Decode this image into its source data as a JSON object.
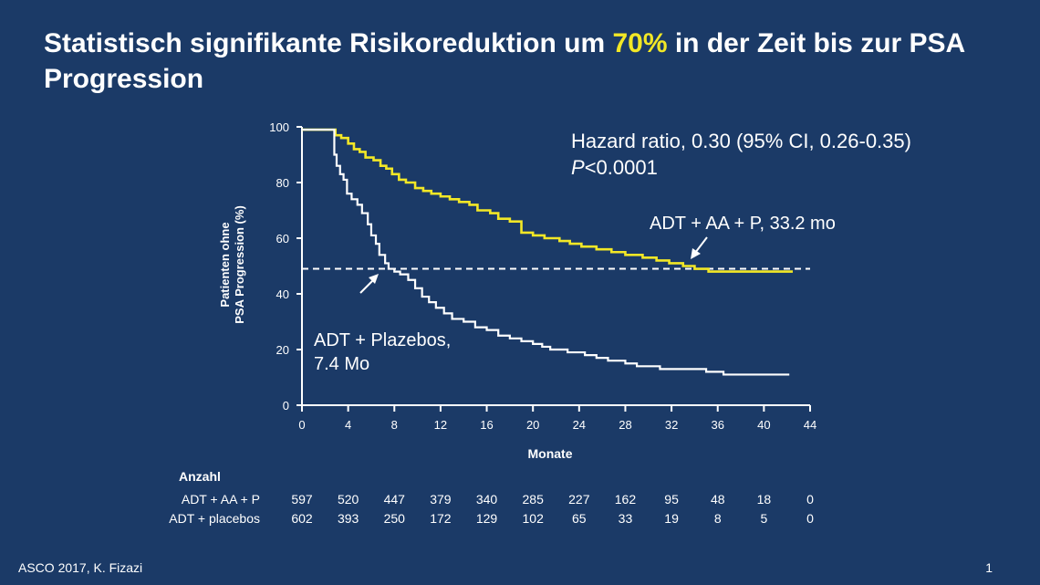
{
  "slide": {
    "title_pre": "Statistisch signifikante Risikoreduktion um ",
    "title_highlight": "70%",
    "title_post": " in der Zeit bis zur PSA Progression",
    "footer_left": "ASCO 2017, K. Fizazi",
    "page_number": "1",
    "highlight_color": "#f2e726",
    "background_color": "#1b3a67"
  },
  "chart_data": {
    "type": "line",
    "subtype": "kaplan-meier step",
    "xlabel": "Monate",
    "ylabel_line1": "Patienten ohne",
    "ylabel_line2": "PSA Progression (%)",
    "xlim": [
      0,
      44
    ],
    "ylim": [
      0,
      100
    ],
    "x_ticks": [
      0,
      4,
      8,
      12,
      16,
      20,
      24,
      28,
      32,
      36,
      40,
      44
    ],
    "y_ticks": [
      0,
      20,
      40,
      60,
      80,
      100
    ],
    "grid": false,
    "median_line_y": 49,
    "hr_text_line1": "Hazard ratio, 0.30 (95% CI, 0.26-0.35)",
    "hr_text_p": "P",
    "hr_text_rest": "<0.0001",
    "series": [
      {
        "name": "ADT + AA + P",
        "label": "ADT + AA + P, 33.2 mo",
        "median": 33.2,
        "color": "#f2e726",
        "points": [
          [
            0,
            99
          ],
          [
            2.6,
            99
          ],
          [
            2.9,
            97
          ],
          [
            3.4,
            96
          ],
          [
            4.0,
            94
          ],
          [
            4.5,
            92
          ],
          [
            5.0,
            91
          ],
          [
            5.5,
            89
          ],
          [
            6.2,
            88
          ],
          [
            6.8,
            86
          ],
          [
            7.3,
            85
          ],
          [
            7.8,
            83
          ],
          [
            8.4,
            81
          ],
          [
            9.0,
            80
          ],
          [
            9.8,
            78
          ],
          [
            10.5,
            77
          ],
          [
            11.2,
            76
          ],
          [
            12.0,
            75
          ],
          [
            12.8,
            74
          ],
          [
            13.6,
            73
          ],
          [
            14.5,
            72
          ],
          [
            15.2,
            70
          ],
          [
            16.3,
            69
          ],
          [
            17.0,
            67
          ],
          [
            18.0,
            66
          ],
          [
            19.0,
            62
          ],
          [
            20.0,
            61
          ],
          [
            21.0,
            60
          ],
          [
            22.3,
            59
          ],
          [
            23.2,
            58
          ],
          [
            24.2,
            57
          ],
          [
            25.5,
            56
          ],
          [
            26.8,
            55
          ],
          [
            28.0,
            54
          ],
          [
            29.5,
            53
          ],
          [
            30.7,
            52
          ],
          [
            31.8,
            51
          ],
          [
            33.0,
            50
          ],
          [
            34.0,
            49
          ],
          [
            35.2,
            48
          ],
          [
            36.5,
            48
          ],
          [
            42.5,
            48
          ]
        ]
      },
      {
        "name": "ADT + Plazebos",
        "label_line1": "ADT + Plazebos,",
        "label_line2": "7.4 Mo",
        "median": 7.4,
        "color": "#ffffff",
        "points": [
          [
            0,
            99
          ],
          [
            2.6,
            99
          ],
          [
            2.8,
            90
          ],
          [
            3.0,
            86
          ],
          [
            3.3,
            83
          ],
          [
            3.6,
            81
          ],
          [
            3.9,
            76
          ],
          [
            4.3,
            74
          ],
          [
            4.8,
            72
          ],
          [
            5.2,
            69
          ],
          [
            5.7,
            65
          ],
          [
            6.0,
            61
          ],
          [
            6.4,
            58
          ],
          [
            6.7,
            54
          ],
          [
            7.2,
            51
          ],
          [
            7.5,
            49
          ],
          [
            8.0,
            48
          ],
          [
            8.5,
            47
          ],
          [
            9.2,
            45
          ],
          [
            9.8,
            42
          ],
          [
            10.4,
            39
          ],
          [
            11.0,
            37
          ],
          [
            11.6,
            35
          ],
          [
            12.3,
            33
          ],
          [
            13.0,
            31
          ],
          [
            14.0,
            30
          ],
          [
            15.0,
            28
          ],
          [
            16.0,
            27
          ],
          [
            17.0,
            25
          ],
          [
            18.0,
            24
          ],
          [
            19.0,
            23
          ],
          [
            20.0,
            22
          ],
          [
            20.8,
            21
          ],
          [
            21.5,
            20
          ],
          [
            23.0,
            19
          ],
          [
            24.5,
            18
          ],
          [
            25.5,
            17
          ],
          [
            26.5,
            16
          ],
          [
            28.0,
            15
          ],
          [
            29.0,
            14
          ],
          [
            31.0,
            13
          ],
          [
            33.0,
            13
          ],
          [
            35.0,
            12
          ],
          [
            36.5,
            11
          ],
          [
            40.0,
            11
          ],
          [
            42.2,
            11
          ]
        ]
      }
    ],
    "risk_table": {
      "heading": "Anzahl",
      "rows": [
        {
          "label": "ADT + AA + P",
          "values": [
            "597",
            "520",
            "447",
            "379",
            "340",
            "285",
            "227",
            "162",
            "95",
            "48",
            "18",
            "0"
          ]
        },
        {
          "label": "ADT + placebos",
          "values": [
            "602",
            "393",
            "250",
            "172",
            "129",
            "102",
            "65",
            "33",
            "19",
            "8",
            "5",
            "0"
          ]
        }
      ]
    }
  }
}
